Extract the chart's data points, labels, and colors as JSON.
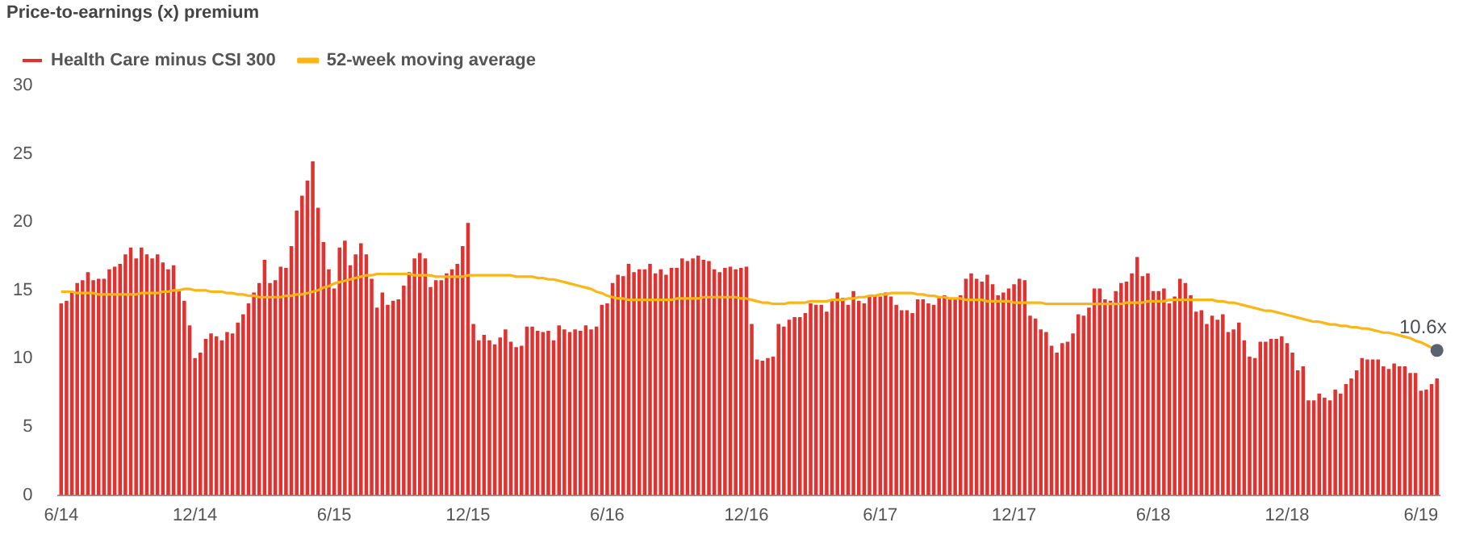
{
  "chart_data": {
    "type": "bar",
    "ylabel": "Price-to-earnings (x) premium",
    "categories": [
      "6/14",
      null,
      null,
      null,
      null,
      null,
      null,
      null,
      null,
      null,
      null,
      null,
      null,
      null,
      null,
      null,
      null,
      null,
      null,
      null,
      null,
      null,
      null,
      null,
      null,
      "12/14",
      null,
      null,
      null,
      null,
      null,
      null,
      null,
      null,
      null,
      null,
      null,
      null,
      null,
      null,
      null,
      null,
      null,
      null,
      null,
      null,
      null,
      null,
      null,
      null,
      null,
      "6/15",
      null,
      null,
      null,
      null,
      null,
      null,
      null,
      null,
      null,
      null,
      null,
      null,
      null,
      null,
      null,
      null,
      null,
      null,
      null,
      null,
      null,
      null,
      null,
      null,
      "12/15",
      null,
      null,
      null,
      null,
      null,
      null,
      null,
      null,
      null,
      null,
      null,
      null,
      null,
      null,
      null,
      null,
      null,
      null,
      null,
      null,
      null,
      null,
      null,
      null,
      null,
      "6/16",
      null,
      null,
      null,
      null,
      null,
      null,
      null,
      null,
      null,
      null,
      null,
      null,
      null,
      null,
      null,
      null,
      null,
      null,
      null,
      null,
      null,
      null,
      null,
      null,
      null,
      "12/16",
      null,
      null,
      null,
      null,
      null,
      null,
      null,
      null,
      null,
      null,
      null,
      null,
      null,
      null,
      null,
      null,
      null,
      null,
      null,
      null,
      null,
      null,
      null,
      null,
      "6/17",
      null,
      null,
      null,
      null,
      null,
      null,
      null,
      null,
      null,
      null,
      null,
      null,
      null,
      null,
      null,
      null,
      null,
      null,
      null,
      null,
      null,
      null,
      null,
      null,
      "12/17",
      null,
      null,
      null,
      null,
      null,
      null,
      null,
      null,
      null,
      null,
      null,
      null,
      null,
      null,
      null,
      null,
      null,
      null,
      null,
      null,
      null,
      null,
      null,
      null,
      null,
      "6/18",
      null,
      null,
      null,
      null,
      null,
      null,
      null,
      null,
      null,
      null,
      null,
      null,
      null,
      null,
      null,
      null,
      null,
      null,
      null,
      null,
      null,
      null,
      null,
      null,
      "12/18",
      null,
      null,
      null,
      null,
      null,
      null,
      null,
      null,
      null,
      null,
      null,
      null,
      null,
      null,
      null,
      null,
      null,
      null,
      null,
      null,
      null,
      null,
      null,
      null,
      "6/19",
      null,
      null,
      null
    ],
    "series": [
      {
        "name": "Health Care minus CSI 300",
        "color": "#e2322f",
        "values": [
          14.0,
          14.2,
          14.9,
          15.5,
          15.7,
          16.3,
          15.7,
          15.8,
          15.8,
          16.5,
          16.7,
          16.9,
          17.6,
          18.1,
          17.3,
          18.1,
          17.6,
          17.3,
          17.6,
          17.0,
          16.5,
          16.8,
          14.9,
          14.2,
          12.4,
          10.0,
          10.4,
          11.4,
          11.8,
          11.6,
          11.3,
          11.9,
          11.8,
          12.6,
          13.2,
          14.0,
          14.8,
          15.5,
          17.2,
          15.5,
          15.7,
          16.7,
          16.6,
          18.2,
          20.8,
          21.9,
          23.0,
          24.4,
          21.0,
          18.5,
          16.5,
          15.1,
          18.1,
          18.6,
          16.8,
          17.6,
          18.4,
          17.6,
          15.8,
          13.7,
          14.8,
          13.9,
          14.2,
          14.3,
          15.3,
          16.3,
          17.3,
          17.7,
          17.3,
          15.2,
          15.7,
          15.7,
          16.2,
          16.5,
          16.9,
          18.2,
          19.9,
          12.5,
          11.3,
          11.7,
          11.3,
          11.0,
          11.5,
          12.1,
          11.2,
          10.8,
          10.9,
          12.3,
          12.3,
          12.0,
          11.9,
          12.0,
          11.3,
          12.4,
          12.1,
          11.9,
          12.1,
          12.0,
          12.4,
          12.1,
          12.3,
          13.9,
          14.0,
          15.5,
          16.1,
          16.0,
          16.9,
          16.3,
          16.5,
          16.5,
          16.9,
          16.2,
          16.5,
          16.1,
          16.6,
          16.6,
          17.3,
          17.1,
          17.3,
          17.5,
          17.2,
          17.1,
          16.5,
          16.3,
          16.6,
          16.7,
          16.5,
          16.6,
          16.7,
          12.5,
          9.9,
          9.8,
          10.0,
          10.1,
          12.5,
          12.3,
          12.8,
          13.0,
          13.0,
          13.3,
          14.0,
          13.9,
          13.9,
          13.4,
          14.2,
          14.8,
          14.4,
          13.9,
          14.9,
          14.2,
          14.0,
          14.6,
          14.6,
          14.5,
          14.8,
          14.5,
          13.9,
          13.5,
          13.5,
          13.3,
          14.3,
          14.3,
          14.0,
          13.9,
          14.4,
          14.6,
          14.4,
          14.3,
          14.6,
          15.8,
          16.2,
          15.8,
          15.6,
          16.1,
          15.4,
          14.6,
          14.8,
          15.1,
          15.4,
          15.8,
          15.7,
          13.1,
          12.9,
          12.1,
          11.9,
          10.9,
          10.4,
          11.1,
          11.2,
          11.8,
          13.2,
          13.1,
          13.7,
          15.1,
          15.1,
          14.3,
          14.2,
          14.9,
          15.5,
          15.6,
          16.2,
          17.4,
          16.0,
          16.2,
          14.9,
          14.9,
          15.1,
          14.0,
          14.5,
          15.8,
          15.5,
          14.6,
          13.4,
          13.5,
          12.5,
          13.1,
          12.8,
          13.2,
          11.9,
          12.1,
          12.6,
          11.3,
          10.1,
          10.0,
          11.2,
          11.2,
          11.4,
          11.4,
          11.6,
          11.1,
          10.4,
          9.1,
          9.4,
          6.9,
          6.9,
          7.4,
          7.1,
          6.9,
          7.7,
          7.4,
          8.1,
          8.5,
          9.1,
          10.0,
          9.9,
          9.9,
          9.9,
          9.4,
          9.2,
          9.6,
          9.4,
          9.4,
          8.9,
          8.9,
          7.6,
          7.7,
          8.1,
          8.5
        ]
      },
      {
        "name": "52-week moving average",
        "type": "line",
        "color": "#fbb515",
        "values": [
          14.9,
          14.9,
          14.9,
          14.8,
          14.8,
          14.8,
          14.8,
          14.7,
          14.7,
          14.7,
          14.7,
          14.7,
          14.7,
          14.7,
          14.7,
          14.8,
          14.8,
          14.8,
          14.8,
          14.9,
          14.9,
          15.0,
          15.0,
          15.1,
          15.1,
          15.0,
          15.0,
          15.0,
          14.9,
          14.9,
          14.9,
          14.8,
          14.8,
          14.7,
          14.7,
          14.6,
          14.6,
          14.5,
          14.5,
          14.5,
          14.5,
          14.5,
          14.6,
          14.6,
          14.7,
          14.7,
          14.8,
          14.9,
          15.0,
          15.2,
          15.3,
          15.5,
          15.6,
          15.7,
          15.8,
          15.9,
          16.0,
          16.1,
          16.1,
          16.2,
          16.2,
          16.2,
          16.2,
          16.2,
          16.2,
          16.2,
          16.1,
          16.1,
          16.1,
          16.1,
          16.0,
          16.0,
          16.0,
          16.0,
          16.0,
          16.0,
          16.1,
          16.1,
          16.1,
          16.1,
          16.1,
          16.1,
          16.1,
          16.1,
          16.1,
          16.0,
          16.0,
          16.0,
          16.0,
          15.9,
          15.9,
          15.8,
          15.8,
          15.7,
          15.6,
          15.5,
          15.4,
          15.3,
          15.2,
          15.1,
          14.9,
          14.8,
          14.6,
          14.5,
          14.4,
          14.4,
          14.3,
          14.3,
          14.3,
          14.3,
          14.3,
          14.3,
          14.3,
          14.3,
          14.3,
          14.4,
          14.4,
          14.4,
          14.4,
          14.4,
          14.5,
          14.5,
          14.5,
          14.5,
          14.5,
          14.5,
          14.5,
          14.4,
          14.4,
          14.3,
          14.2,
          14.1,
          14.1,
          14.0,
          14.0,
          14.0,
          14.1,
          14.1,
          14.1,
          14.1,
          14.2,
          14.2,
          14.2,
          14.2,
          14.3,
          14.3,
          14.3,
          14.4,
          14.4,
          14.5,
          14.5,
          14.6,
          14.6,
          14.7,
          14.7,
          14.8,
          14.8,
          14.8,
          14.8,
          14.8,
          14.7,
          14.7,
          14.6,
          14.6,
          14.5,
          14.5,
          14.4,
          14.4,
          14.4,
          14.3,
          14.3,
          14.3,
          14.3,
          14.2,
          14.2,
          14.2,
          14.2,
          14.2,
          14.1,
          14.1,
          14.1,
          14.1,
          14.1,
          14.1,
          14.0,
          14.0,
          14.0,
          14.0,
          14.0,
          14.0,
          14.0,
          14.0,
          14.0,
          14.0,
          14.0,
          14.0,
          14.0,
          14.0,
          14.0,
          14.1,
          14.1,
          14.1,
          14.1,
          14.2,
          14.2,
          14.2,
          14.2,
          14.3,
          14.3,
          14.3,
          14.3,
          14.3,
          14.3,
          14.3,
          14.3,
          14.3,
          14.2,
          14.2,
          14.1,
          14.1,
          14.0,
          13.9,
          13.8,
          13.7,
          13.6,
          13.5,
          13.5,
          13.4,
          13.3,
          13.2,
          13.1,
          13.0,
          12.9,
          12.8,
          12.7,
          12.7,
          12.6,
          12.5,
          12.5,
          12.4,
          12.4,
          12.3,
          12.3,
          12.2,
          12.2,
          12.1,
          12.0,
          11.9,
          11.9,
          11.8,
          11.7,
          11.6,
          11.5,
          11.3,
          11.2,
          11.0,
          10.8,
          10.6
        ]
      }
    ],
    "ylim": [
      0,
      30
    ],
    "yticks": [
      0,
      5,
      10,
      15,
      20,
      25,
      30
    ],
    "grid": false,
    "legend": "top left",
    "marker": "none",
    "line_style": "solid",
    "annotations": [
      "10.6x"
    ]
  }
}
